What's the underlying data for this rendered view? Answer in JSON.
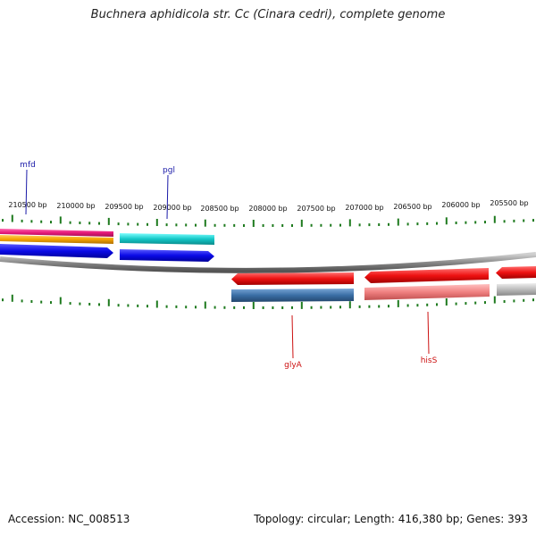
{
  "title": "Buchnera aphidicola str. Cc (Cinara cedri), complete genome",
  "footer": {
    "accession_label": "Accession:",
    "accession": "NC_008513",
    "topology_label": "Topology:",
    "topology": "circular",
    "length_label": "Length:",
    "length": "416,380 bp",
    "genes_label": "Genes:",
    "genes": "393"
  },
  "axis": {
    "tick_labels": [
      "210500 bp",
      "210000 bp",
      "209500 bp",
      "209000 bp",
      "208500 bp",
      "208000 bp",
      "207500 bp",
      "207000 bp",
      "206500 bp",
      "206000 bp",
      "205500 bp"
    ]
  },
  "genes": {
    "forward": [
      {
        "name": "mfd",
        "label_color": "#1a1aa8"
      },
      {
        "name": "pgl",
        "label_color": "#1a1aa8"
      }
    ],
    "reverse": [
      {
        "name": "glyA",
        "label_color": "#cc1111"
      },
      {
        "name": "hisS",
        "label_color": "#cc1111"
      }
    ]
  },
  "colors": {
    "tick": "#1e7a1e",
    "backbone": "#888888",
    "magenta": "#e6197a",
    "orange": "#f5a300",
    "blue": "#0a0ae6",
    "cyan": "#14c8c8",
    "red": "#ee1111",
    "steel": "#3a6ea5",
    "pink": "#f08080",
    "grey": "#bbbbbb"
  }
}
